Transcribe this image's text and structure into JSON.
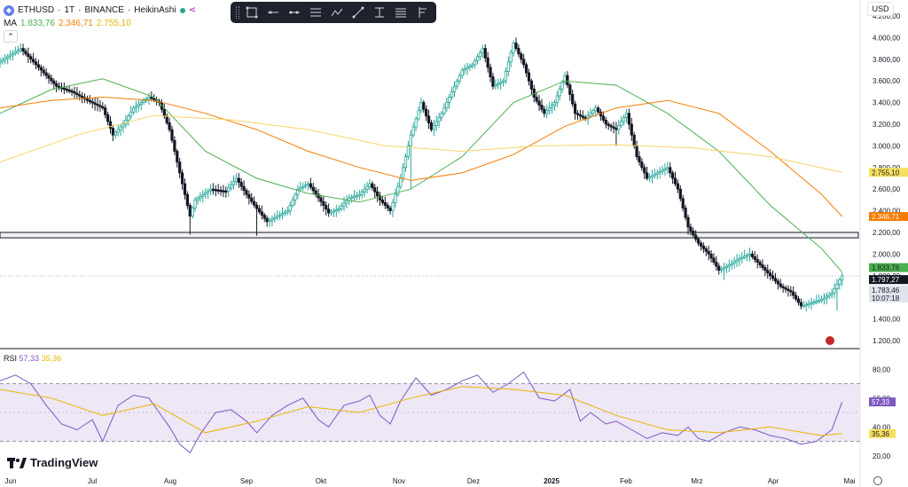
{
  "header": {
    "symbol": "ETHUSD",
    "timeframe": "1T",
    "exchange": "BINANCE",
    "chart_style": "HeikinAshi",
    "ma_label": "MA",
    "ma_values": [
      "1.833,76",
      "2.346,71",
      "2.755,10"
    ]
  },
  "currency_button": "USD",
  "toolbar_icons": [
    "rectangle-tool-icon",
    "horizontal-line-icon",
    "ray-icon",
    "parallel-channel-icon",
    "path-tool-icon",
    "trend-line-icon",
    "fib-tool-icon",
    "text-tool-icon",
    "forecast-tool-icon"
  ],
  "colors": {
    "up": "#26a69a",
    "down": "#131722",
    "ma_fast": "#4caf50",
    "ma_mid": "#f57c00",
    "ma_slow": "#f6d365",
    "rsi": "#7e57c2",
    "rsi_ma": "#e8b600",
    "rsi_band": "#ede7f6"
  },
  "rsi": {
    "label": "RSI",
    "value": "57,33",
    "ma_value": "35,36"
  },
  "logo_text": "TradingView",
  "chart_data": [
    {
      "type": "candlestick",
      "subtype": "heikin-ashi",
      "x_ticks": [
        "Jun",
        "Jul",
        "Aug",
        "Sep",
        "Okt",
        "Nov",
        "Dez",
        "2025",
        "Feb",
        "Mrz",
        "Apr",
        "Mai"
      ],
      "y_ticks": [
        "4.200,00",
        "4.000,00",
        "3.800,00",
        "3.600,00",
        "3.400,00",
        "3.200,00",
        "3.000,00",
        "2.800,00",
        "2.600,00",
        "2.400,00",
        "2.200,00",
        "2.000,00",
        "1.800,00",
        "1.600,00",
        "1.400,00",
        "1.200,00"
      ],
      "ylim": [
        1200,
        4200
      ],
      "price_path": [
        [
          0,
          3780
        ],
        [
          8,
          3900
        ],
        [
          16,
          3700
        ],
        [
          22,
          3550
        ],
        [
          28,
          3500
        ],
        [
          34,
          3420
        ],
        [
          40,
          3350
        ],
        [
          44,
          3100
        ],
        [
          48,
          3200
        ],
        [
          52,
          3350
        ],
        [
          58,
          3450
        ],
        [
          62,
          3400
        ],
        [
          66,
          3150
        ],
        [
          70,
          2750
        ],
        [
          74,
          2350
        ],
        [
          76,
          2500
        ],
        [
          82,
          2600
        ],
        [
          88,
          2580
        ],
        [
          92,
          2700
        ],
        [
          96,
          2550
        ],
        [
          100,
          2420
        ],
        [
          104,
          2300
        ],
        [
          108,
          2350
        ],
        [
          112,
          2400
        ],
        [
          116,
          2600
        ],
        [
          120,
          2650
        ],
        [
          124,
          2520
        ],
        [
          128,
          2380
        ],
        [
          132,
          2420
        ],
        [
          136,
          2520
        ],
        [
          140,
          2550
        ],
        [
          144,
          2650
        ],
        [
          148,
          2500
        ],
        [
          152,
          2400
        ],
        [
          156,
          2700
        ],
        [
          160,
          3100
        ],
        [
          164,
          3400
        ],
        [
          168,
          3150
        ],
        [
          172,
          3300
        ],
        [
          176,
          3500
        ],
        [
          180,
          3700
        ],
        [
          184,
          3750
        ],
        [
          188,
          3900
        ],
        [
          192,
          3550
        ],
        [
          196,
          3600
        ],
        [
          200,
          3950
        ],
        [
          204,
          3750
        ],
        [
          208,
          3450
        ],
        [
          212,
          3300
        ],
        [
          216,
          3400
        ],
        [
          220,
          3650
        ],
        [
          224,
          3300
        ],
        [
          228,
          3250
        ],
        [
          232,
          3350
        ],
        [
          236,
          3200
        ],
        [
          240,
          3150
        ],
        [
          244,
          3300
        ],
        [
          248,
          2900
        ],
        [
          252,
          2700
        ],
        [
          256,
          2750
        ],
        [
          260,
          2800
        ],
        [
          264,
          2600
        ],
        [
          268,
          2250
        ],
        [
          272,
          2100
        ],
        [
          276,
          2000
        ],
        [
          280,
          1850
        ],
        [
          284,
          1900
        ],
        [
          288,
          1960
        ],
        [
          292,
          2000
        ],
        [
          296,
          1900
        ],
        [
          300,
          1800
        ],
        [
          304,
          1700
        ],
        [
          308,
          1650
        ],
        [
          312,
          1520
        ],
        [
          316,
          1550
        ],
        [
          320,
          1580
        ],
        [
          324,
          1640
        ],
        [
          328,
          1800
        ]
      ],
      "candle_period_days": 1,
      "lines": [
        {
          "name": "MA fast",
          "last": 1833.76,
          "values": [
            [
              0,
              3300
            ],
            [
              20,
              3520
            ],
            [
              40,
              3620
            ],
            [
              60,
              3450
            ],
            [
              80,
              2950
            ],
            [
              100,
              2700
            ],
            [
              120,
              2560
            ],
            [
              140,
              2480
            ],
            [
              160,
              2600
            ],
            [
              180,
              2900
            ],
            [
              200,
              3400
            ],
            [
              220,
              3600
            ],
            [
              240,
              3560
            ],
            [
              260,
              3300
            ],
            [
              280,
              2950
            ],
            [
              300,
              2450
            ],
            [
              320,
              2050
            ],
            [
              328,
              1833.76
            ]
          ]
        },
        {
          "name": "MA mid",
          "last": 2346.71,
          "values": [
            [
              0,
              3350
            ],
            [
              20,
              3420
            ],
            [
              40,
              3450
            ],
            [
              60,
              3420
            ],
            [
              80,
              3300
            ],
            [
              100,
              3150
            ],
            [
              120,
              2950
            ],
            [
              140,
              2800
            ],
            [
              160,
              2680
            ],
            [
              180,
              2750
            ],
            [
              200,
              2920
            ],
            [
              220,
              3180
            ],
            [
              240,
              3350
            ],
            [
              260,
              3420
            ],
            [
              280,
              3300
            ],
            [
              300,
              2950
            ],
            [
              320,
              2550
            ],
            [
              328,
              2346.71
            ]
          ]
        },
        {
          "name": "MA slow",
          "last": 2755.1,
          "values": [
            [
              0,
              2850
            ],
            [
              30,
              3100
            ],
            [
              60,
              3280
            ],
            [
              90,
              3240
            ],
            [
              120,
              3150
            ],
            [
              150,
              3000
            ],
            [
              180,
              2950
            ],
            [
              210,
              3000
            ],
            [
              240,
              3010
            ],
            [
              270,
              2980
            ],
            [
              300,
              2900
            ],
            [
              328,
              2755.1
            ]
          ]
        }
      ],
      "support_zone": [
        2150,
        2200
      ],
      "price_labels": [
        {
          "label": "2.755,10",
          "kind": "ma_slow"
        },
        {
          "label": "2.346,71",
          "kind": "ma_mid"
        },
        {
          "label": "1.833,76",
          "kind": "ma_fast"
        },
        {
          "label": "1.797,27",
          "kind": "last_price"
        },
        {
          "label": "1.783,46",
          "kind": "bid"
        },
        {
          "label": "10:07:18",
          "kind": "countdown"
        }
      ],
      "grid": false
    },
    {
      "type": "line",
      "title": "RSI",
      "y_ticks": [
        "80,00",
        "60,00",
        "40,00",
        "20,00"
      ],
      "ylim": [
        10,
        90
      ],
      "band": [
        30,
        70
      ],
      "mid": 50,
      "series": [
        {
          "name": "RSI",
          "last": 57.33,
          "values": [
            [
              0,
              72
            ],
            [
              6,
              76
            ],
            [
              12,
              70
            ],
            [
              18,
              55
            ],
            [
              24,
              42
            ],
            [
              30,
              38
            ],
            [
              36,
              45
            ],
            [
              40,
              30
            ],
            [
              46,
              55
            ],
            [
              52,
              62
            ],
            [
              58,
              60
            ],
            [
              62,
              50
            ],
            [
              66,
              40
            ],
            [
              70,
              28
            ],
            [
              74,
              22
            ],
            [
              78,
              35
            ],
            [
              84,
              50
            ],
            [
              90,
              52
            ],
            [
              96,
              44
            ],
            [
              100,
              36
            ],
            [
              106,
              48
            ],
            [
              112,
              55
            ],
            [
              118,
              60
            ],
            [
              124,
              45
            ],
            [
              128,
              40
            ],
            [
              134,
              55
            ],
            [
              140,
              58
            ],
            [
              144,
              62
            ],
            [
              148,
              48
            ],
            [
              152,
              42
            ],
            [
              156,
              58
            ],
            [
              162,
              74
            ],
            [
              168,
              62
            ],
            [
              174,
              66
            ],
            [
              180,
              72
            ],
            [
              186,
              76
            ],
            [
              192,
              64
            ],
            [
              198,
              70
            ],
            [
              204,
              78
            ],
            [
              210,
              60
            ],
            [
              216,
              58
            ],
            [
              222,
              66
            ],
            [
              226,
              44
            ],
            [
              230,
              50
            ],
            [
              236,
              42
            ],
            [
              240,
              44
            ],
            [
              246,
              38
            ],
            [
              252,
              32
            ],
            [
              258,
              36
            ],
            [
              264,
              34
            ],
            [
              268,
              40
            ],
            [
              272,
              32
            ],
            [
              276,
              30
            ],
            [
              282,
              36
            ],
            [
              288,
              40
            ],
            [
              294,
              38
            ],
            [
              300,
              34
            ],
            [
              306,
              32
            ],
            [
              312,
              28
            ],
            [
              318,
              30
            ],
            [
              324,
              38
            ],
            [
              328,
              57.33
            ]
          ]
        },
        {
          "name": "RSI MA",
          "last": 35.36,
          "values": [
            [
              0,
              66
            ],
            [
              20,
              60
            ],
            [
              40,
              48
            ],
            [
              60,
              56
            ],
            [
              80,
              36
            ],
            [
              100,
              44
            ],
            [
              120,
              54
            ],
            [
              140,
              50
            ],
            [
              160,
              60
            ],
            [
              180,
              68
            ],
            [
              200,
              66
            ],
            [
              220,
              62
            ],
            [
              240,
              48
            ],
            [
              260,
              38
            ],
            [
              280,
              36
            ],
            [
              300,
              40
            ],
            [
              320,
              34
            ],
            [
              328,
              35.36
            ]
          ]
        }
      ]
    }
  ]
}
